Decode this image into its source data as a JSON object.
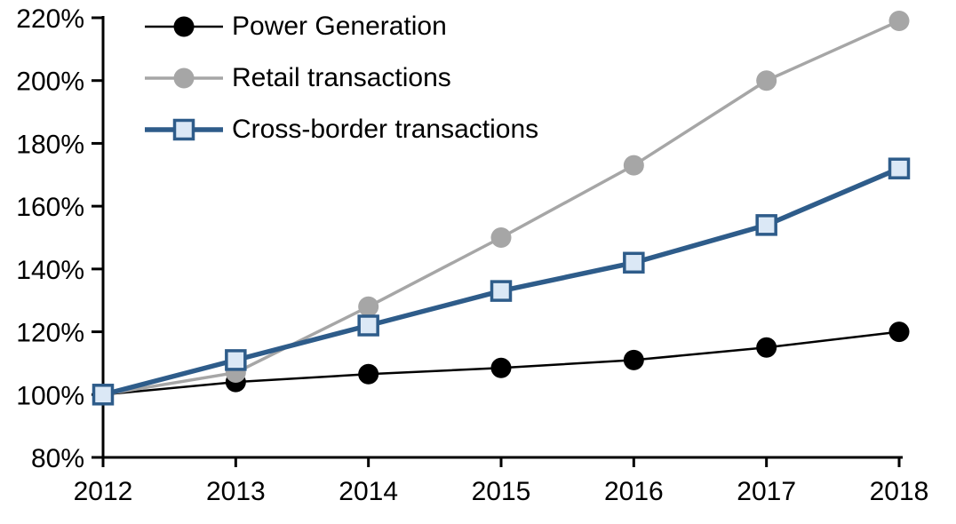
{
  "chart_data": {
    "type": "line",
    "title": "",
    "xlabel": "",
    "ylabel": "",
    "x": [
      "2012",
      "2013",
      "2014",
      "2015",
      "2016",
      "2017",
      "2018"
    ],
    "series": [
      {
        "name": "Power Generation",
        "color": "#000000",
        "marker": "circle",
        "marker_fill": "#000000",
        "marker_size": 23,
        "line_width": 2.5,
        "values": [
          100,
          104,
          106.5,
          108.5,
          111,
          115,
          120
        ]
      },
      {
        "name": "Retail transactions",
        "color": "#a6a6a6",
        "marker": "circle",
        "marker_fill": "#a6a6a6",
        "marker_size": 23,
        "line_width": 3.5,
        "values": [
          100,
          107,
          128,
          150,
          173,
          200,
          219
        ]
      },
      {
        "name": "Cross-border transactions",
        "color": "#2e5c8a",
        "marker": "square",
        "marker_fill": "#dbe8f6",
        "marker_size": 21,
        "line_width": 5.5,
        "values": [
          100,
          111,
          122,
          133,
          142,
          154,
          172
        ]
      }
    ],
    "ylim": [
      80,
      220
    ],
    "ytick_step": 20,
    "ytick_suffix": "%",
    "legend_position": "top-left",
    "grid": false,
    "axis_color": "#000000",
    "text_color": "#000000",
    "tick_font_size": 30,
    "legend_font_size": 30
  }
}
